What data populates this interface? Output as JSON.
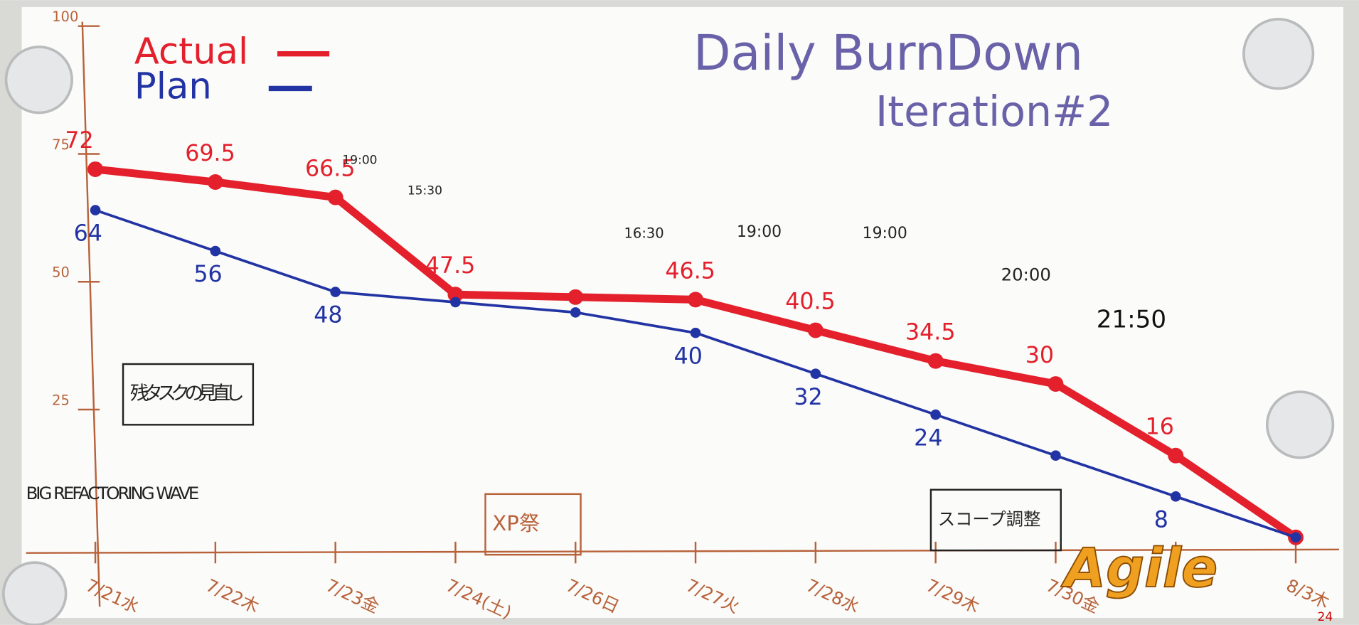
{
  "chart_data": {
    "type": "line",
    "title": "Daily BurnDown",
    "subtitle": "Iteration#2",
    "categories": [
      "7/21水",
      "7/22木",
      "7/23金",
      "7/24(土)",
      "7/26日",
      "7/27火",
      "7/28水",
      "7/29木",
      "7/30金",
      null,
      "8/3木"
    ],
    "series": [
      {
        "name": "Actual",
        "color": "#e3202b",
        "values": [
          72,
          69.5,
          66.5,
          47.5,
          47,
          46.5,
          40.5,
          34.5,
          30,
          16,
          0
        ],
        "value_labels": [
          "72",
          "69.5",
          "66.5",
          "47.5",
          null,
          "46.5",
          "40.5",
          "34.5",
          "30",
          "16",
          null
        ]
      },
      {
        "name": "Plan",
        "color": "#2233a3",
        "values": [
          64,
          56,
          48,
          46,
          44,
          40,
          32,
          24,
          16,
          8,
          0
        ],
        "value_labels": [
          "64",
          "56",
          "48",
          null,
          null,
          "40",
          "32",
          "24",
          null,
          "8",
          null
        ]
      }
    ],
    "ylim": [
      0,
      100
    ],
    "yticks": [
      25,
      50,
      75,
      100
    ],
    "grid": false,
    "legend": "top-left",
    "axis_color": "#b8623a",
    "annotations": [
      "19:00",
      "15:30",
      "16:30",
      "19:00",
      "19:00",
      "20:00",
      "21:50",
      "残タスクの見直し",
      "XP祭",
      "スコープ調整",
      "BIG REFACTORING WAVE",
      "Agile",
      "24"
    ]
  }
}
